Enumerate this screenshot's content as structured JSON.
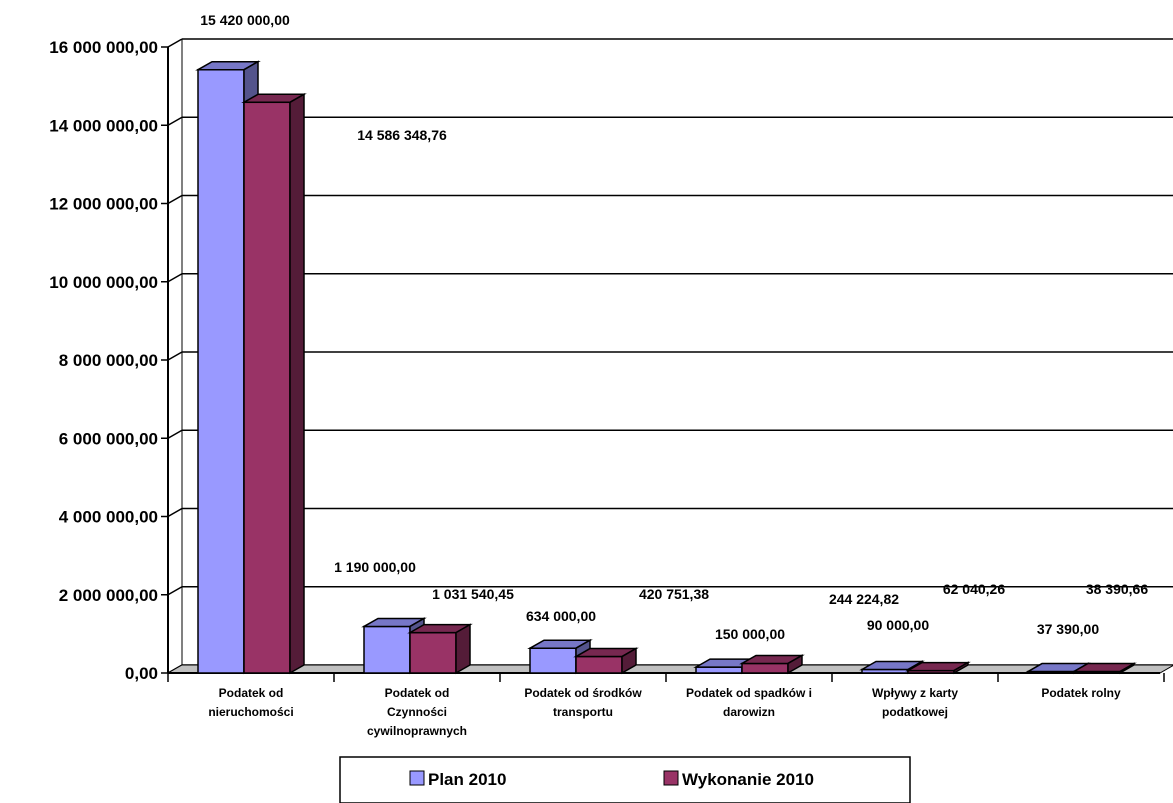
{
  "chart_data": {
    "type": "bar",
    "style": "3d-clustered-column",
    "categories": [
      [
        "Podatek od",
        "nieruchomości"
      ],
      [
        "Podatek od",
        "Czynności",
        "cywilnoprawnych"
      ],
      [
        "Podatek od środków",
        "transportu"
      ],
      [
        "Podatek od spadków i",
        "darowizn"
      ],
      [
        "Wpływy z karty",
        "podatkowej"
      ],
      [
        "Podatek rolny"
      ]
    ],
    "series": [
      {
        "name": "Plan 2010",
        "color": "#9999FF",
        "values": [
          15420000.0,
          1190000.0,
          634000.0,
          150000.0,
          90000.0,
          37390.0
        ],
        "labels": [
          "15 420 000,00",
          "1 190 000,00",
          "634 000,00",
          "150 000,00",
          "90 000,00",
          "37 390,00"
        ]
      },
      {
        "name": "Wykonanie 2010",
        "color": "#993366",
        "values": [
          14586348.76,
          1031540.45,
          420751.38,
          244224.82,
          62040.26,
          38390.66
        ],
        "labels": [
          "14 586 348,76",
          "1 031 540,45",
          "420 751,38",
          "244 224,82",
          "62 040,26",
          "38 390,66"
        ]
      }
    ],
    "ylim": [
      0,
      16000000
    ],
    "yticks": [
      0,
      2000000,
      4000000,
      6000000,
      8000000,
      10000000,
      12000000,
      14000000,
      16000000
    ],
    "ytick_labels": [
      "0,00",
      "2 000 000,00",
      "4 000 000,00",
      "6 000 000,00",
      "8 000 000,00",
      "10 000 000,00",
      "12 000 000,00",
      "14 000 000,00",
      "16 000 000,00"
    ],
    "grid": true,
    "legend_position": "bottom",
    "title": "",
    "xlabel": "",
    "ylabel": ""
  }
}
